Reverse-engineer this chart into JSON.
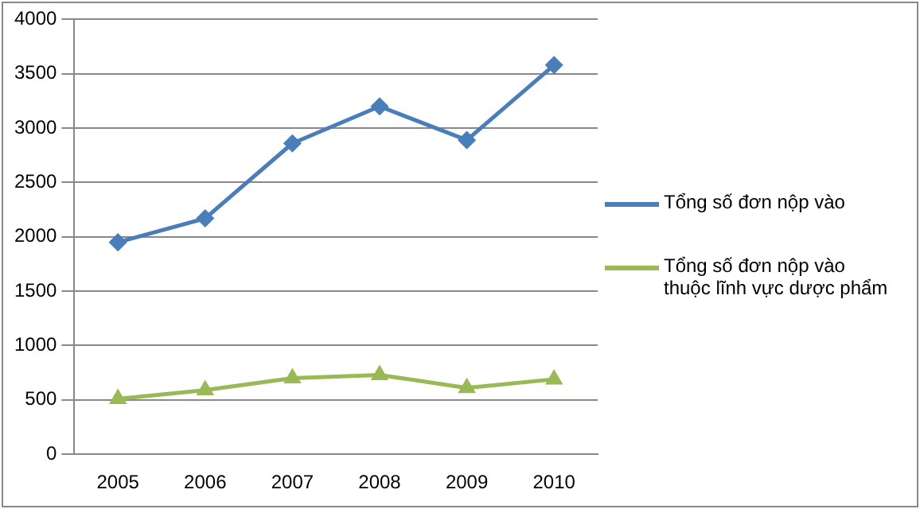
{
  "chart_data": {
    "type": "line",
    "categories": [
      "2005",
      "2006",
      "2007",
      "2008",
      "2009",
      "2010"
    ],
    "series": [
      {
        "name": "Tổng số đơn nộp vào",
        "color": "#4a7ebb",
        "marker": "diamond",
        "values": [
          1950,
          2170,
          2860,
          3200,
          2890,
          3580
        ]
      },
      {
        "name": "Tổng số đơn nộp vào thuộc lĩnh vực dược phẩm",
        "color": "#98b954",
        "marker": "triangle",
        "values": [
          510,
          590,
          700,
          730,
          610,
          690
        ]
      }
    ],
    "ylim": [
      0,
      4000
    ],
    "yticks": [
      0,
      500,
      1000,
      1500,
      2000,
      2500,
      3000,
      3500,
      4000
    ],
    "grid": "y",
    "legend": "right"
  }
}
